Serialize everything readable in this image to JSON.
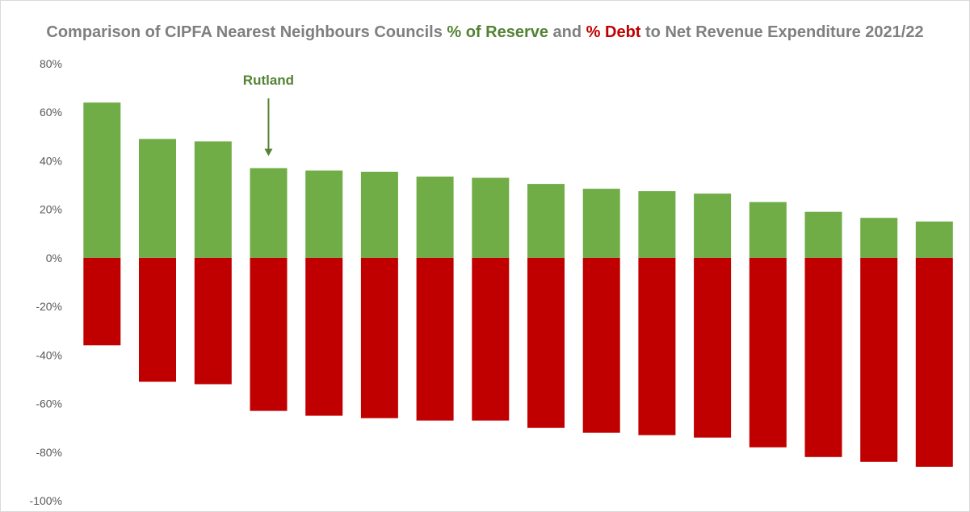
{
  "title": {
    "part1": "Comparison of CIPFA Nearest Neighbours Councils ",
    "reserve": "% of Reserve",
    "part2": " and ",
    "debt": "% Debt",
    "part3": " to Net Revenue Expenditure 2021/22"
  },
  "chart_data": {
    "type": "bar",
    "stacked": true,
    "ylim": [
      -1.0,
      0.8
    ],
    "yticks": [
      0.8,
      0.6,
      0.4,
      0.2,
      0.0,
      -0.2,
      -0.4,
      -0.6,
      -0.8,
      -1.0
    ],
    "ytick_labels": [
      "80%",
      "60%",
      "40%",
      "20%",
      "0%",
      "-20%",
      "-40%",
      "-60%",
      "-80%",
      "-100%"
    ],
    "grid": false,
    "series": [
      {
        "color": "#70ad47",
        "values": [
          0.64,
          0.49,
          0.48,
          0.37,
          0.36,
          0.355,
          0.335,
          0.33,
          0.305,
          0.285,
          0.275,
          0.265,
          0.23,
          0.19,
          0.165,
          0.15
        ]
      },
      {
        "color": "#c00000",
        "values": [
          -0.36,
          -0.51,
          -0.52,
          -0.63,
          -0.65,
          -0.66,
          -0.67,
          -0.67,
          -0.7,
          -0.72,
          -0.73,
          -0.74,
          -0.78,
          -0.82,
          -0.84,
          -0.86
        ]
      }
    ],
    "annotations": [
      {
        "text": "Rutland",
        "category_index": 3,
        "color": "#548235"
      }
    ]
  }
}
